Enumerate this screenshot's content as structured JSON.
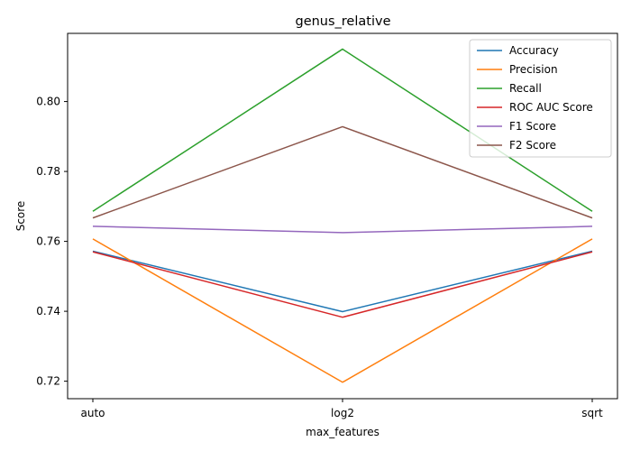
{
  "chart_data": {
    "type": "line",
    "title": "genus_relative",
    "xlabel": "max_features",
    "ylabel": "Score",
    "categories": [
      "auto",
      "log2",
      "sqrt"
    ],
    "ylim": [
      0.715,
      0.8195
    ],
    "yticks": [
      0.72,
      0.74,
      0.76,
      0.78,
      0.8
    ],
    "ytick_labels": [
      "0.72",
      "0.74",
      "0.76",
      "0.78",
      "0.80"
    ],
    "grid": false,
    "legend_position": "top-right",
    "series": [
      {
        "name": "Accuracy",
        "color": "#1f77b4",
        "values": [
          0.7572,
          0.7399,
          0.7572
        ]
      },
      {
        "name": "Precision",
        "color": "#ff7f0e",
        "values": [
          0.7607,
          0.7197,
          0.7607
        ]
      },
      {
        "name": "Recall",
        "color": "#2ca02c",
        "values": [
          0.7686,
          0.815,
          0.7686
        ]
      },
      {
        "name": "ROC AUC Score",
        "color": "#d62728",
        "values": [
          0.757,
          0.7383,
          0.757
        ]
      },
      {
        "name": "F1 Score",
        "color": "#9467bd",
        "values": [
          0.7643,
          0.7625,
          0.7643
        ]
      },
      {
        "name": "F2 Score",
        "color": "#8c564b",
        "values": [
          0.7667,
          0.7928,
          0.7667
        ]
      }
    ]
  }
}
